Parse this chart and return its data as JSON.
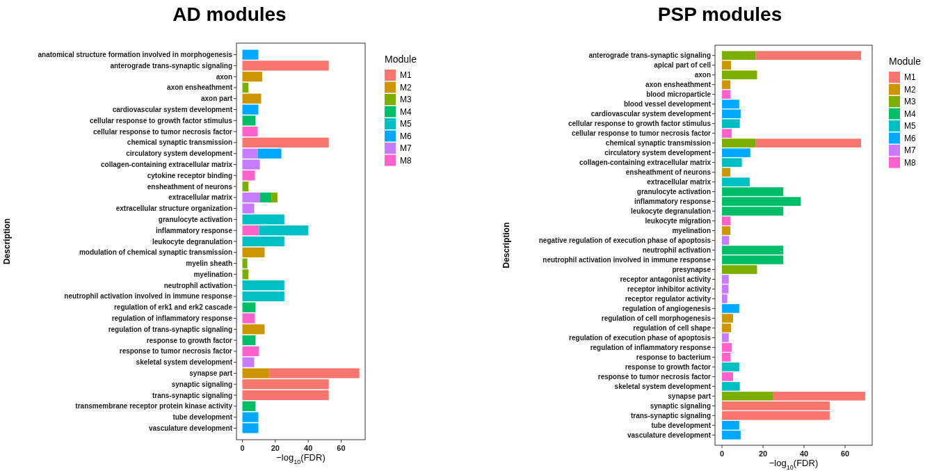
{
  "chart_data": [
    {
      "type": "bar",
      "title": "AD modules",
      "xlabel": "−log$_{10}$(FDR)",
      "ylabel": "Description",
      "legend_title": "Module",
      "legend": "right",
      "orientation": "horizontal",
      "stacked": true,
      "categories": [
        "anatomical structure formation involved in morphogenesis",
        "anterograde trans-synaptic signaling",
        "axon",
        "axon ensheathment",
        "axon part",
        "cardiovascular system development",
        "cellular response to growth factor stimulus",
        "cellular response to tumor necrosis factor",
        "chemical synaptic transmission",
        "circulatory system development",
        "collagen-containing extracellular matrix",
        "cytokine receptor binding",
        "ensheathment of neurons",
        "extracellular matrix",
        "extracellular structure organization",
        "granulocyte activation",
        "inflammatory response",
        "leukocyte degranulation",
        "modulation of chemical synaptic transmission",
        "myelin sheath",
        "myelination",
        "neutrophil activation",
        "neutrophil activation involved in immune response",
        "regulation of erk1 and erk2 cascade",
        "regulation of inflammatory response",
        "regulation of trans-synaptic signaling",
        "response to growth factor",
        "response to tumor necrosis factor",
        "skeletal system development",
        "synapse part",
        "synaptic signaling",
        "trans-synaptic signaling",
        "transmembrane receptor protein kinase activity",
        "tube development",
        "vasculature development"
      ],
      "series": [
        {
          "name": "M8",
          "color": "#ff61cc",
          "values": [
            null,
            null,
            null,
            null,
            null,
            null,
            null,
            9.3,
            null,
            null,
            null,
            7.6,
            null,
            null,
            null,
            null,
            10.1,
            null,
            null,
            null,
            null,
            null,
            null,
            null,
            7.6,
            null,
            null,
            10.1,
            null,
            null,
            null,
            null,
            null,
            null,
            null
          ]
        },
        {
          "name": "M7",
          "color": "#c77cff",
          "values": [
            null,
            null,
            null,
            null,
            null,
            null,
            null,
            null,
            null,
            9.3,
            10.6,
            null,
            null,
            10.8,
            7.2,
            null,
            null,
            null,
            null,
            null,
            null,
            null,
            null,
            null,
            null,
            null,
            null,
            null,
            7.2,
            null,
            null,
            null,
            null,
            null,
            null
          ]
        },
        {
          "name": "M6",
          "color": "#00a9ff",
          "values": [
            9.7,
            null,
            null,
            null,
            null,
            9.7,
            null,
            null,
            null,
            14.4,
            null,
            null,
            null,
            null,
            null,
            null,
            null,
            null,
            null,
            null,
            null,
            null,
            null,
            null,
            null,
            null,
            null,
            null,
            null,
            null,
            null,
            null,
            null,
            9.7,
            9.7
          ]
        },
        {
          "name": "M5",
          "color": "#00bfc4",
          "values": [
            null,
            null,
            null,
            null,
            null,
            null,
            null,
            null,
            null,
            null,
            null,
            null,
            null,
            null,
            null,
            25.5,
            30.0,
            25.5,
            null,
            null,
            null,
            25.5,
            25.5,
            null,
            null,
            null,
            null,
            null,
            null,
            null,
            null,
            null,
            null,
            null,
            null
          ]
        },
        {
          "name": "M4",
          "color": "#00be67",
          "values": [
            null,
            null,
            null,
            null,
            null,
            null,
            8.0,
            null,
            null,
            null,
            null,
            null,
            null,
            6.8,
            null,
            null,
            null,
            null,
            null,
            null,
            null,
            null,
            null,
            8.0,
            null,
            null,
            8.0,
            null,
            null,
            null,
            null,
            null,
            8.0,
            null,
            null
          ]
        },
        {
          "name": "M3",
          "color": "#7cae00",
          "values": [
            null,
            null,
            null,
            3.7,
            null,
            null,
            null,
            null,
            null,
            null,
            null,
            null,
            3.7,
            3.7,
            null,
            null,
            null,
            null,
            null,
            3.0,
            3.7,
            null,
            null,
            null,
            null,
            null,
            null,
            null,
            null,
            null,
            null,
            null,
            null,
            null,
            null
          ]
        },
        {
          "name": "M2",
          "color": "#cd9600",
          "values": [
            null,
            null,
            12.0,
            null,
            11.4,
            null,
            null,
            null,
            null,
            null,
            null,
            null,
            null,
            null,
            null,
            null,
            null,
            null,
            13.5,
            null,
            null,
            null,
            null,
            null,
            null,
            13.5,
            null,
            null,
            null,
            16.2,
            null,
            null,
            null,
            null,
            null
          ]
        },
        {
          "name": "M1",
          "color": "#f8766d",
          "values": [
            null,
            52.5,
            null,
            null,
            null,
            null,
            null,
            null,
            52.5,
            null,
            null,
            null,
            null,
            null,
            null,
            null,
            null,
            null,
            null,
            null,
            null,
            null,
            null,
            null,
            null,
            null,
            null,
            null,
            null,
            54.9,
            52.5,
            52.5,
            null,
            null,
            null
          ]
        }
      ],
      "xlim": [
        -3.6,
        74.6
      ],
      "xticks": [
        0,
        20,
        40,
        60
      ]
    },
    {
      "type": "bar",
      "title": "PSP modules",
      "xlabel": "−log$_{10}$(FDR)",
      "ylabel": "Description",
      "legend_title": "Module",
      "legend": "right",
      "orientation": "horizontal",
      "stacked": true,
      "categories": [
        "anterograde trans-synaptic signaling",
        "apical part of cell",
        "axon",
        "axon ensheathment",
        "blood microparticle",
        "blood vessel development",
        "cardiovascular system development",
        "cellular response to growth factor stimulus",
        "cellular response to tumor necrosis factor",
        "chemical synaptic transmission",
        "circulatory system development",
        "collagen-containing extracellular matrix",
        "ensheathment of neurons",
        "extracellular matrix",
        "granulocyte activation",
        "inflammatory response",
        "leukocyte degranulation",
        "leukocyte migration",
        "myelination",
        "negative regulation of execution phase of apoptosis",
        "neutrophil activation",
        "neutrophil activation involved in immune response",
        "presynapse",
        "receptor antagonist activity",
        "receptor inhibitor activity",
        "receptor regulator activity",
        "regulation of angiogenesis",
        "regulation of cell morphogenesis",
        "regulation of cell shape",
        "regulation of execution phase of apoptosis",
        "regulation of inflammatory response",
        "response to bacterium",
        "response to growth factor",
        "response to tumor necrosis factor",
        "skeletal system development",
        "synapse part",
        "synaptic signaling",
        "trans-synaptic signaling",
        "tube development",
        "vasculature development"
      ],
      "series": [
        {
          "name": "M8",
          "color": "#ff61cc",
          "values": [
            null,
            null,
            null,
            null,
            4.2,
            null,
            null,
            null,
            4.7,
            null,
            null,
            null,
            null,
            null,
            null,
            null,
            null,
            4.2,
            null,
            null,
            null,
            null,
            null,
            null,
            null,
            null,
            null,
            null,
            null,
            null,
            4.8,
            4.2,
            null,
            5.4,
            null,
            null,
            null,
            null,
            null,
            null
          ]
        },
        {
          "name": "M7",
          "color": "#c77cff",
          "values": [
            null,
            null,
            null,
            null,
            null,
            null,
            null,
            null,
            null,
            null,
            null,
            null,
            null,
            null,
            null,
            null,
            null,
            null,
            null,
            3.5,
            null,
            null,
            null,
            3.3,
            3.2,
            2.6,
            null,
            null,
            null,
            3.3,
            null,
            null,
            null,
            null,
            null,
            null,
            null,
            null,
            null,
            null
          ]
        },
        {
          "name": "M6",
          "color": "#00a9ff",
          "values": [
            null,
            null,
            null,
            null,
            null,
            8.4,
            9.1,
            null,
            null,
            null,
            13.8,
            null,
            null,
            null,
            null,
            null,
            null,
            null,
            null,
            null,
            null,
            null,
            null,
            null,
            null,
            null,
            8.4,
            null,
            null,
            null,
            null,
            null,
            null,
            null,
            null,
            null,
            null,
            null,
            8.4,
            9.1
          ]
        },
        {
          "name": "M5",
          "color": "#00bfc4",
          "values": [
            null,
            null,
            null,
            null,
            null,
            null,
            null,
            8.7,
            null,
            null,
            null,
            9.7,
            null,
            13.5,
            null,
            null,
            null,
            null,
            null,
            null,
            null,
            null,
            null,
            null,
            null,
            null,
            null,
            null,
            null,
            null,
            null,
            null,
            8.4,
            null,
            8.7,
            null,
            null,
            null,
            null,
            null
          ]
        },
        {
          "name": "M4",
          "color": "#00be67",
          "values": [
            null,
            null,
            null,
            null,
            null,
            null,
            null,
            null,
            null,
            null,
            null,
            null,
            null,
            null,
            29.9,
            38.4,
            29.9,
            null,
            null,
            null,
            29.9,
            29.9,
            null,
            null,
            null,
            null,
            null,
            null,
            null,
            null,
            null,
            null,
            null,
            null,
            null,
            null,
            null,
            null,
            null,
            null
          ]
        },
        {
          "name": "M3",
          "color": "#7cae00",
          "values": [
            16.5,
            null,
            17.1,
            null,
            null,
            null,
            null,
            null,
            null,
            16.5,
            null,
            null,
            null,
            null,
            null,
            null,
            null,
            null,
            null,
            null,
            null,
            null,
            17.1,
            null,
            null,
            null,
            null,
            null,
            null,
            null,
            null,
            null,
            null,
            null,
            null,
            25.0,
            null,
            null,
            null,
            null
          ]
        },
        {
          "name": "M2",
          "color": "#cd9600",
          "values": [
            null,
            4.4,
            null,
            4.1,
            null,
            null,
            null,
            null,
            null,
            null,
            null,
            null,
            4.1,
            null,
            null,
            null,
            null,
            null,
            4.1,
            null,
            null,
            null,
            null,
            null,
            null,
            null,
            null,
            5.4,
            4.4,
            null,
            null,
            null,
            null,
            null,
            null,
            null,
            null,
            null,
            null,
            null
          ]
        },
        {
          "name": "M1",
          "color": "#f8766d",
          "values": [
            51.3,
            null,
            null,
            null,
            null,
            null,
            null,
            null,
            null,
            51.3,
            null,
            null,
            null,
            null,
            null,
            null,
            null,
            null,
            null,
            null,
            null,
            null,
            null,
            null,
            null,
            null,
            null,
            null,
            null,
            null,
            null,
            null,
            null,
            null,
            null,
            44.8,
            52.5,
            52.5,
            null,
            null
          ]
        }
      ],
      "xlim": [
        -3.4,
        73.2
      ],
      "xticks": [
        0,
        20,
        40,
        60
      ]
    }
  ]
}
